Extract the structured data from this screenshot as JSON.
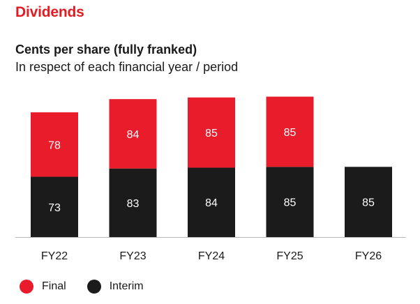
{
  "title": "Dividends",
  "subtitle": "Cents per share (fully franked)",
  "subtitle2": "In respect of each financial year / period",
  "colors": {
    "title": "#e31b23",
    "final": "#e81c2b",
    "interim": "#1b1b1b",
    "bar_label": "#ffffff",
    "axis": "#b8b8b8",
    "text": "#1a1a1a"
  },
  "legend": {
    "final_label": "Final",
    "interim_label": "Interim"
  },
  "chart_data": {
    "type": "bar",
    "stacked": true,
    "categories": [
      "FY22",
      "FY23",
      "FY24",
      "FY25",
      "FY26"
    ],
    "series": [
      {
        "name": "Interim",
        "values": [
          73,
          83,
          84,
          85,
          85
        ]
      },
      {
        "name": "Final",
        "values": [
          78,
          84,
          85,
          85,
          null
        ]
      }
    ],
    "title": "Dividends",
    "ylabel": "",
    "xlabel": "",
    "ylim": [
      0,
      170
    ],
    "grid": false,
    "legend_position": "bottom-left"
  }
}
